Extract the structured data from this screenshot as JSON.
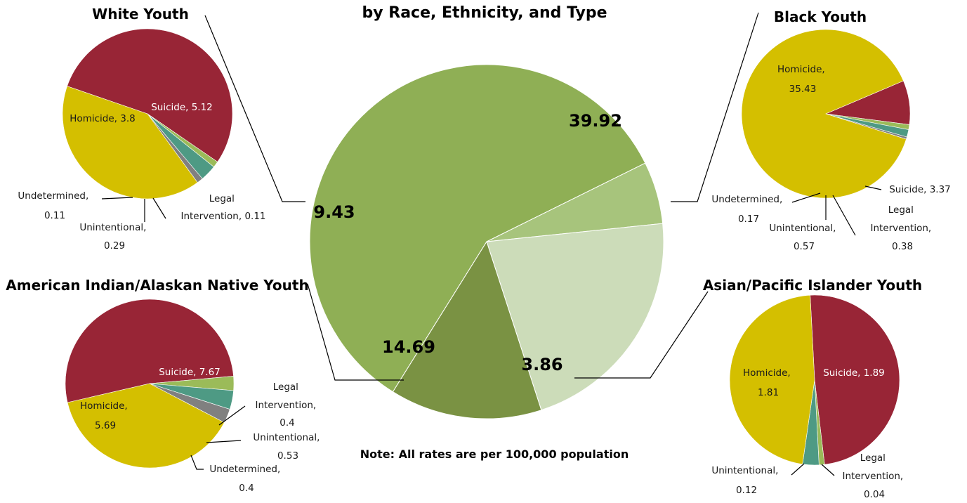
{
  "figure": {
    "subtitle": "by Race, Ethnicity, and Type",
    "note": "Note: All rates are per 100,000 population"
  },
  "colors": {
    "homicide": "#d4bf00",
    "suicide": "#982536",
    "legal_intervention": "#9bbb59",
    "unintentional": "#4e9a84",
    "undetermined": "#808080",
    "center_white": "#7a9243",
    "center_black": "#8faf55",
    "center_asian": "#a7c47c",
    "center_aian": "#ccdcb9"
  },
  "chart_data": [
    {
      "id": "center",
      "type": "pie",
      "title": "",
      "slices": [
        {
          "label": "39.92",
          "value": 39.92,
          "color_key": "center_black",
          "group": "Black Youth"
        },
        {
          "label": "3.86",
          "value": 3.86,
          "color_key": "center_asian",
          "group": "Asian/Pacific Islander Youth"
        },
        {
          "label": "14.69",
          "value": 14.69,
          "color_key": "center_aian",
          "group": "American Indian/Alaskan Native Youth"
        },
        {
          "label": "9.43",
          "value": 9.43,
          "color_key": "center_white",
          "group": "White Youth"
        }
      ]
    },
    {
      "id": "white",
      "type": "pie",
      "title": "White Youth",
      "slices": [
        {
          "category": "Suicide",
          "value": 5.12,
          "color_key": "suicide",
          "label": "Suicide, 5.12"
        },
        {
          "category": "Legal Intervention",
          "value": 0.11,
          "color_key": "legal_intervention",
          "label": "Legal Intervention, 0.11"
        },
        {
          "category": "Unintentional",
          "value": 0.29,
          "color_key": "unintentional",
          "label": "Unintentional, 0.29"
        },
        {
          "category": "Undetermined",
          "value": 0.11,
          "color_key": "undetermined",
          "label": "Undetermined, 0.11"
        },
        {
          "category": "Homicide",
          "value": 3.8,
          "color_key": "homicide",
          "label": "Homicide, 3.8"
        }
      ]
    },
    {
      "id": "black",
      "type": "pie",
      "title": "Black Youth",
      "slices": [
        {
          "category": "Suicide",
          "value": 3.37,
          "color_key": "suicide",
          "label": "Suicide, 3.37"
        },
        {
          "category": "Legal Intervention",
          "value": 0.38,
          "color_key": "legal_intervention",
          "label": "Legal Intervention, 0.38"
        },
        {
          "category": "Unintentional",
          "value": 0.57,
          "color_key": "unintentional",
          "label": "Unintentional, 0.57"
        },
        {
          "category": "Undetermined",
          "value": 0.17,
          "color_key": "undetermined",
          "label": "Undetermined, 0.17"
        },
        {
          "category": "Homicide",
          "value": 35.43,
          "color_key": "homicide",
          "label": "Homicide, 35.43"
        }
      ]
    },
    {
      "id": "aian",
      "type": "pie",
      "title": "American Indian/Alaskan Native Youth",
      "slices": [
        {
          "category": "Suicide",
          "value": 7.67,
          "color_key": "suicide",
          "label": "Suicide, 7.67"
        },
        {
          "category": "Legal Intervention",
          "value": 0.4,
          "color_key": "legal_intervention",
          "label": "Legal Intervention, 0.4"
        },
        {
          "category": "Unintentional",
          "value": 0.53,
          "color_key": "unintentional",
          "label": "Unintentional, 0.53"
        },
        {
          "category": "Undetermined",
          "value": 0.4,
          "color_key": "undetermined",
          "label": "Undetermined, 0.4"
        },
        {
          "category": "Homicide",
          "value": 5.69,
          "color_key": "homicide",
          "label": "Homicide, 5.69"
        }
      ]
    },
    {
      "id": "asian",
      "type": "pie",
      "title": "Asian/Pacific Islander Youth",
      "slices": [
        {
          "category": "Suicide",
          "value": 1.89,
          "color_key": "suicide",
          "label": "Suicide, 1.89"
        },
        {
          "category": "Legal Intervention",
          "value": 0.04,
          "color_key": "legal_intervention",
          "label": "Legal Intervention, 0.04"
        },
        {
          "category": "Unintentional",
          "value": 0.12,
          "color_key": "unintentional",
          "label": "Unintentional, 0.12"
        },
        {
          "category": "Homicide",
          "value": 1.81,
          "color_key": "homicide",
          "label": "Homicide, 1.81"
        }
      ]
    }
  ]
}
